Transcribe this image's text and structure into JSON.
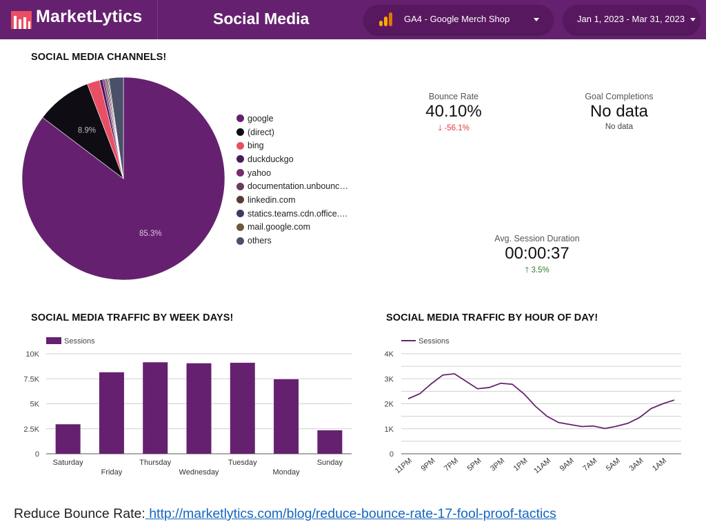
{
  "header": {
    "brand": "MarketLytics",
    "title": "Social Media",
    "property_selector": "GA4 - Google Merch Shop",
    "date_range": "Jan 1, 2023 - Mar 31, 2023",
    "colors": {
      "bar": "#65216f",
      "pill": "#58185f",
      "logo_red": "#e94f64"
    }
  },
  "channels": {
    "title": "SOCIAL MEDIA CHANNELS!",
    "chart_data": {
      "type": "pie",
      "slices": [
        {
          "label": "google",
          "value": 85.3,
          "color": "#65216f"
        },
        {
          "label": "(direct)",
          "value": 8.9,
          "color": "#0f0c14"
        },
        {
          "label": "bing",
          "value": 2.0,
          "color": "#e94f64"
        },
        {
          "label": "duckduckgo",
          "value": 0.5,
          "color": "#4a1a5e"
        },
        {
          "label": "yahoo",
          "value": 0.3,
          "color": "#7a2b6e"
        },
        {
          "label": "documentation.unbounce…",
          "value": 0.2,
          "color": "#6d3b5c"
        },
        {
          "label": "linkedin.com",
          "value": 0.2,
          "color": "#5a3a36"
        },
        {
          "label": "statics.teams.cdn.office.n…",
          "value": 0.15,
          "color": "#3e3a66"
        },
        {
          "label": "mail.google.com",
          "value": 0.15,
          "color": "#6b5a40"
        },
        {
          "label": "others",
          "value": 2.3,
          "color": "#4a5068"
        }
      ],
      "data_labels": [
        "85.3%",
        "8.9%"
      ]
    }
  },
  "kpis": {
    "bounce_rate": {
      "label": "Bounce Rate",
      "value": "40.10%",
      "delta": "-56.1%",
      "delta_color": "#e53935"
    },
    "goal_completions": {
      "label": "Goal Completions",
      "value": "No data",
      "sub": "No data"
    },
    "avg_session": {
      "label": "Avg. Session Duration",
      "value": "00:00:37",
      "delta": "3.5%",
      "delta_color": "#2e7d32"
    }
  },
  "weekdays": {
    "title": "SOCIAL MEDIA TRAFFIC BY WEEK DAYS!",
    "chart_data": {
      "type": "bar",
      "categories": [
        "Saturday",
        "Friday",
        "Thursday",
        "Wednesday",
        "Tuesday",
        "Monday",
        "Sunday"
      ],
      "series": [
        {
          "name": "Sessions",
          "values": [
            2950,
            8150,
            9150,
            9050,
            9100,
            7450,
            2350
          ]
        }
      ],
      "ylim": [
        0,
        10000
      ],
      "yticks": [
        "0",
        "2.5K",
        "5K",
        "7.5K",
        "10K"
      ],
      "legend": "top-left",
      "grid": true
    }
  },
  "hours": {
    "title": "SOCIAL MEDIA TRAFFIC BY HOUR OF DAY!",
    "chart_data": {
      "type": "line",
      "x": [
        "11PM",
        "10PM",
        "9PM",
        "8PM",
        "7PM",
        "6PM",
        "5PM",
        "4PM",
        "3PM",
        "2PM",
        "1PM",
        "12PM",
        "11AM",
        "10AM",
        "9AM",
        "8AM",
        "7AM",
        "6AM",
        "5AM",
        "4AM",
        "3AM",
        "2AM",
        "1AM",
        "12AM"
      ],
      "xticks": [
        "11PM",
        "9PM",
        "7PM",
        "5PM",
        "3PM",
        "1PM",
        "11AM",
        "9AM",
        "7AM",
        "5AM",
        "3AM",
        "1AM"
      ],
      "series": [
        {
          "name": "Sessions",
          "values": [
            2200,
            2400,
            2800,
            3150,
            3200,
            2900,
            2600,
            2650,
            2820,
            2780,
            2400,
            1900,
            1500,
            1250,
            1170,
            1090,
            1110,
            1010,
            1100,
            1220,
            1450,
            1810,
            2000,
            2150
          ]
        }
      ],
      "ylim": [
        0,
        4000
      ],
      "yticks": [
        "0",
        "1K",
        "2K",
        "3K",
        "4K"
      ],
      "legend": "top-left",
      "grid": true
    }
  },
  "footer": {
    "text": "Reduce Bounce Rate:",
    "link": " http://marketlytics.com/blog/reduce-bounce-rate-17-fool-proof-tactics"
  }
}
